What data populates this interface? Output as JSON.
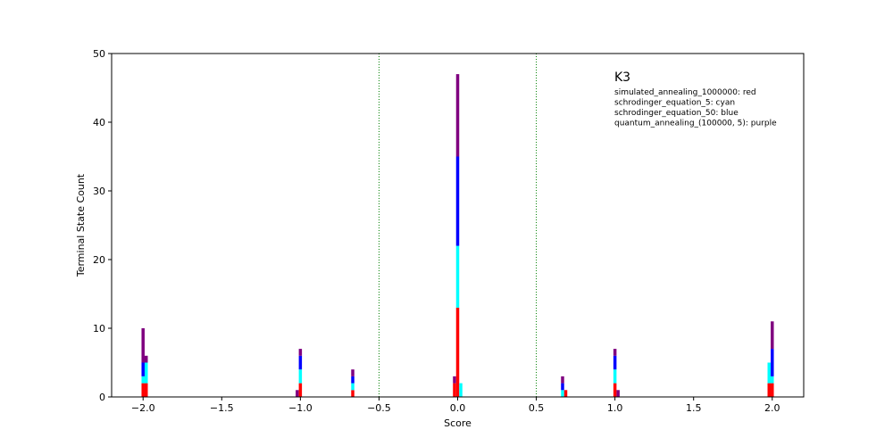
{
  "chart_data": {
    "type": "bar",
    "title": "K3",
    "xlabel": "Score",
    "ylabel": "Terminal State Count",
    "xlim": [
      -2.2,
      2.2
    ],
    "ylim": [
      0,
      50
    ],
    "xticks": [
      -2.0,
      -1.5,
      -1.0,
      -0.5,
      0.0,
      0.5,
      1.0,
      1.5,
      2.0
    ],
    "xtick_labels": [
      "−2.0",
      "−1.5",
      "−1.0",
      "−0.5",
      "0.0",
      "0.5",
      "1.0",
      "1.5",
      "2.0"
    ],
    "yticks": [
      0,
      10,
      20,
      30,
      40,
      50
    ],
    "ytick_labels": [
      "0",
      "10",
      "20",
      "30",
      "40",
      "50"
    ],
    "vlines": [
      -0.5,
      0.5
    ],
    "vline_color": "#008000",
    "grid": false,
    "legend_text": [
      "simulated_annealing_1000000: red",
      "schrodinger_equation_5: cyan",
      "schrodinger_equation_50: blue",
      "quantum_annealing_(100000, 5): purple"
    ],
    "stacks": [
      {
        "x": -2.0,
        "segments": [
          {
            "color": "#ff0000",
            "value": 2
          },
          {
            "color": "#00ffff",
            "value": 1
          },
          {
            "color": "#0000ff",
            "value": 2
          },
          {
            "color": "#800080",
            "value": 5
          }
        ]
      },
      {
        "x": -1.98,
        "segments": [
          {
            "color": "#ff0000",
            "value": 2
          },
          {
            "color": "#00ffff",
            "value": 3
          },
          {
            "color": "#0000ff",
            "value": 0
          },
          {
            "color": "#800080",
            "value": 1
          }
        ]
      },
      {
        "x": -1.02,
        "segments": [
          {
            "color": "#800080",
            "value": 1
          }
        ]
      },
      {
        "x": -1.0,
        "segments": [
          {
            "color": "#ff0000",
            "value": 2
          },
          {
            "color": "#00ffff",
            "value": 2
          },
          {
            "color": "#0000ff",
            "value": 2
          },
          {
            "color": "#800080",
            "value": 1
          }
        ]
      },
      {
        "x": -0.667,
        "segments": [
          {
            "color": "#ff0000",
            "value": 1
          },
          {
            "color": "#00ffff",
            "value": 1
          },
          {
            "color": "#0000ff",
            "value": 1
          },
          {
            "color": "#800080",
            "value": 1
          }
        ]
      },
      {
        "x": -0.02,
        "segments": [
          {
            "color": "#ff0000",
            "value": 2
          },
          {
            "color": "#800080",
            "value": 1
          }
        ]
      },
      {
        "x": 0.0,
        "segments": [
          {
            "color": "#ff0000",
            "value": 13
          },
          {
            "color": "#00ffff",
            "value": 9
          },
          {
            "color": "#0000ff",
            "value": 13
          },
          {
            "color": "#800080",
            "value": 12
          }
        ]
      },
      {
        "x": 0.02,
        "segments": [
          {
            "color": "#00ffff",
            "value": 2
          }
        ]
      },
      {
        "x": 0.667,
        "segments": [
          {
            "color": "#00ffff",
            "value": 1
          },
          {
            "color": "#0000ff",
            "value": 1
          },
          {
            "color": "#800080",
            "value": 1
          }
        ]
      },
      {
        "x": 0.687,
        "segments": [
          {
            "color": "#ff0000",
            "value": 1
          }
        ]
      },
      {
        "x": 1.0,
        "segments": [
          {
            "color": "#ff0000",
            "value": 2
          },
          {
            "color": "#00ffff",
            "value": 2
          },
          {
            "color": "#0000ff",
            "value": 2
          },
          {
            "color": "#800080",
            "value": 1
          }
        ]
      },
      {
        "x": 1.02,
        "segments": [
          {
            "color": "#800080",
            "value": 1
          }
        ]
      },
      {
        "x": 1.98,
        "segments": [
          {
            "color": "#ff0000",
            "value": 2
          },
          {
            "color": "#00ffff",
            "value": 3
          }
        ]
      },
      {
        "x": 2.0,
        "segments": [
          {
            "color": "#ff0000",
            "value": 2
          },
          {
            "color": "#00ffff",
            "value": 1
          },
          {
            "color": "#0000ff",
            "value": 4
          },
          {
            "color": "#800080",
            "value": 4
          }
        ]
      }
    ]
  }
}
